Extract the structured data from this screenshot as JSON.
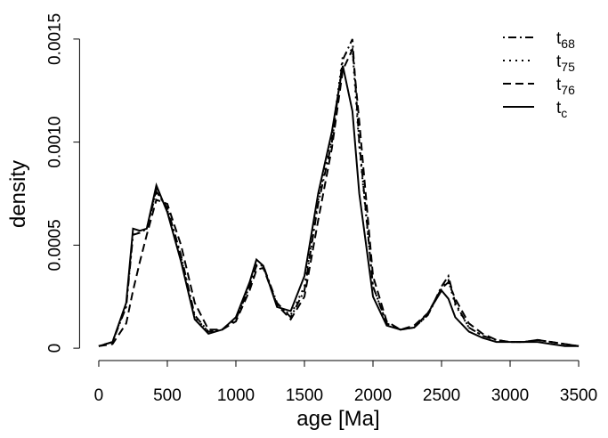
{
  "chart_data": {
    "type": "line",
    "xlabel": "age [Ma]",
    "ylabel": "density",
    "x": [
      0,
      100,
      200,
      250,
      300,
      350,
      420,
      500,
      600,
      700,
      800,
      900,
      1000,
      1100,
      1150,
      1200,
      1300,
      1400,
      1500,
      1600,
      1700,
      1780,
      1850,
      1900,
      2000,
      2100,
      2200,
      2300,
      2400,
      2500,
      2550,
      2600,
      2700,
      2800,
      2900,
      3000,
      3100,
      3200,
      3300,
      3400,
      3500
    ],
    "series": [
      {
        "name": "t68",
        "color": "#000000",
        "linestyle": "dashdot",
        "values": [
          1e-05,
          3e-05,
          0.0002,
          0.00055,
          0.00056,
          0.00058,
          0.00076,
          0.00068,
          0.00045,
          0.00016,
          8e-05,
          9e-05,
          0.00014,
          0.0003,
          0.0004,
          0.0004,
          0.00022,
          0.00015,
          0.00028,
          0.0007,
          0.001,
          0.0014,
          0.0015,
          0.001,
          0.0003,
          0.00012,
          9e-05,
          0.0001,
          0.00016,
          0.0003,
          0.00035,
          0.00022,
          0.0001,
          6e-05,
          4e-05,
          3e-05,
          3e-05,
          4e-05,
          3e-05,
          2e-05,
          1e-05
        ]
      },
      {
        "name": "t75",
        "color": "#000000",
        "linestyle": "dotted",
        "values": [
          1e-05,
          3e-05,
          0.00021,
          0.00056,
          0.00056,
          0.00058,
          0.00077,
          0.00067,
          0.00044,
          0.00015,
          8e-05,
          9e-05,
          0.00014,
          0.00031,
          0.00041,
          0.0004,
          0.00021,
          0.00016,
          0.0003,
          0.00072,
          0.00102,
          0.00142,
          0.00145,
          0.00098,
          0.0003,
          0.00012,
          9e-05,
          0.0001,
          0.00016,
          0.00029,
          0.00033,
          0.00021,
          0.0001,
          6e-05,
          4e-05,
          3e-05,
          3e-05,
          4e-05,
          3e-05,
          2e-05,
          1e-05
        ]
      },
      {
        "name": "t76",
        "color": "#000000",
        "linestyle": "dashed",
        "values": [
          1e-05,
          2e-05,
          0.00012,
          0.00028,
          0.00042,
          0.00055,
          0.00072,
          0.0007,
          0.0005,
          0.00022,
          9e-05,
          9e-05,
          0.00013,
          0.00028,
          0.00038,
          0.00039,
          0.00021,
          0.00014,
          0.00025,
          0.00062,
          0.00097,
          0.00135,
          0.00145,
          0.0011,
          0.00035,
          0.00013,
          9e-05,
          0.00011,
          0.00017,
          0.00029,
          0.00032,
          0.00024,
          0.00012,
          7e-05,
          4e-05,
          3e-05,
          3e-05,
          4e-05,
          3e-05,
          2e-05,
          1e-05
        ]
      },
      {
        "name": "tc",
        "color": "#000000",
        "linestyle": "solid",
        "values": [
          1e-05,
          3e-05,
          0.00022,
          0.00058,
          0.00057,
          0.00058,
          0.00079,
          0.00066,
          0.00042,
          0.00014,
          7e-05,
          9e-05,
          0.00015,
          0.00032,
          0.00043,
          0.0004,
          0.0002,
          0.00018,
          0.00035,
          0.00075,
          0.00105,
          0.00137,
          0.00115,
          0.00075,
          0.00025,
          0.00011,
          9e-05,
          0.0001,
          0.00017,
          0.00028,
          0.00024,
          0.00015,
          8e-05,
          5e-05,
          3e-05,
          3e-05,
          3e-05,
          3e-05,
          2e-05,
          1e-05,
          1e-05
        ]
      }
    ],
    "xlim": [
      -140,
      3640
    ],
    "ylim": [
      -6e-05,
      0.00156
    ],
    "xticks": [
      0,
      500,
      1000,
      1500,
      2000,
      2500,
      3000,
      3500
    ],
    "yticks": [
      0,
      0.0005,
      {
        "value": 0.001,
        "label": "0.0010"
      },
      0.0015
    ],
    "legend": "top-right"
  }
}
